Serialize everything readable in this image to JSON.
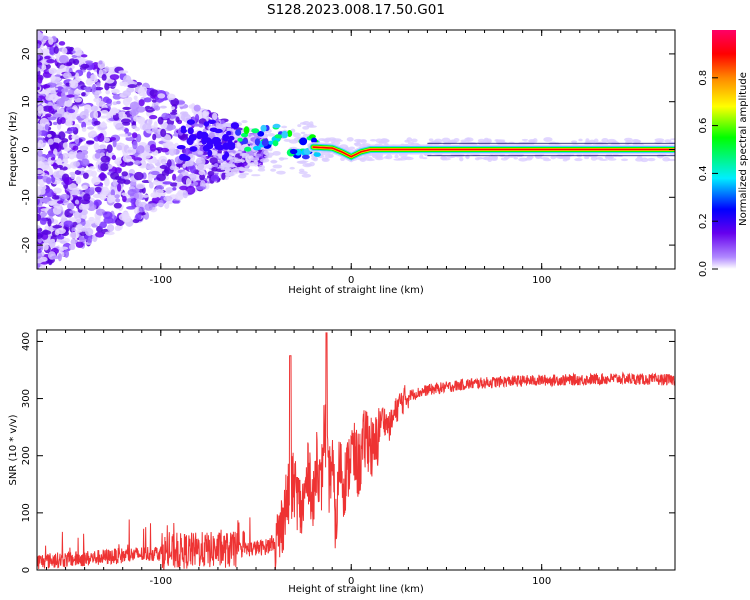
{
  "title": "S128.2023.008.17.50.G01",
  "colors": {
    "snr_line": "#ee3333",
    "axes": "#000000",
    "background": "#ffffff"
  },
  "chart_data": [
    {
      "type": "heatmap",
      "xlabel": "Height of straight line (km)",
      "ylabel": "Frequency (Hz)",
      "xlim": [
        -165,
        170
      ],
      "ylim": [
        -25,
        25
      ],
      "xticks": [
        -100,
        0,
        100
      ],
      "yticks": [
        -20,
        -10,
        0,
        10,
        20
      ],
      "colorbar": {
        "label": "Normalized spectral amplitude",
        "range": [
          0.0,
          1.0
        ],
        "ticks": [
          0.0,
          0.2,
          0.4,
          0.6,
          0.8
        ],
        "colormap": [
          "#ffffff",
          "#9966ff",
          "#6600ee",
          "#0000ff",
          "#00eeff",
          "#00ff00",
          "#ffff00",
          "#ff8800",
          "#ff0000",
          "#ff0066"
        ]
      },
      "ridge_frequency": [
        {
          "x": -60,
          "y": 2
        },
        {
          "x": -40,
          "y": 3
        },
        {
          "x": -30,
          "y": 1.5
        },
        {
          "x": -20,
          "y": 0.5
        },
        {
          "x": -10,
          "y": 0.3
        },
        {
          "x": -5,
          "y": -0.5
        },
        {
          "x": 0,
          "y": -1.5
        },
        {
          "x": 5,
          "y": -0.5
        },
        {
          "x": 10,
          "y": 0
        },
        {
          "x": 170,
          "y": 0
        }
      ]
    },
    {
      "type": "line",
      "xlabel": "Height of straight line (km)",
      "ylabel": "SNR (10 * v/v)",
      "xlim": [
        -165,
        170
      ],
      "ylim": [
        0,
        420
      ],
      "xticks": [
        -100,
        0,
        100
      ],
      "yticks": [
        0,
        100,
        200,
        300,
        400
      ],
      "series": [
        {
          "x": [
            -165,
            -140,
            -120,
            -100,
            -80,
            -60,
            -45,
            -38,
            -34,
            -30,
            -26,
            -22,
            -20,
            -18,
            -16,
            -14,
            -12,
            -10,
            -8,
            -6,
            -4,
            -2,
            0,
            4,
            8,
            12,
            16,
            20,
            25,
            30,
            40,
            50,
            60,
            80,
            100,
            120,
            140,
            160,
            170
          ],
          "y": [
            15,
            20,
            25,
            30,
            35,
            35,
            40,
            55,
            120,
            150,
            100,
            180,
            100,
            210,
            130,
            260,
            150,
            190,
            70,
            200,
            150,
            170,
            210,
            180,
            240,
            200,
            270,
            250,
            290,
            305,
            315,
            320,
            325,
            330,
            332,
            333,
            335,
            333,
            333
          ]
        }
      ],
      "spikes": [
        {
          "x": -32,
          "y": 375
        },
        {
          "x": -13,
          "y": 415
        }
      ]
    }
  ]
}
